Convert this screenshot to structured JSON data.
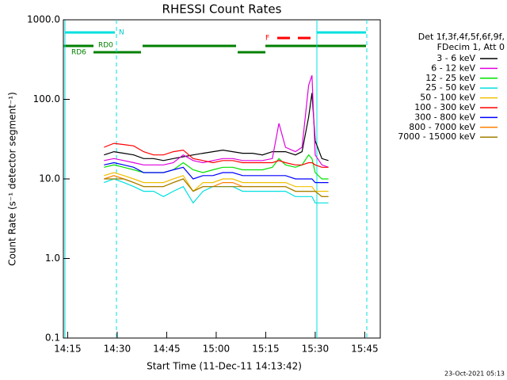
{
  "chart_data": {
    "type": "line",
    "title": "RHESSI Count Rates",
    "x_label": "Start Time (11-Dec-11 14:13:42)",
    "y_label": "Count Rate (s⁻¹ detector segment⁻¹)",
    "legend_header": [
      "Det 1f,3f,4f,5f,6f,9f,",
      "FDecim 1, Att 0"
    ],
    "footer": "23-Oct-2021 05:13",
    "flags": [
      "N",
      "RD0",
      "RD6",
      "F"
    ],
    "log_y": true,
    "xlim": [
      "14:13:42",
      "15:49:42"
    ],
    "xticks": [
      "14:15",
      "14:30",
      "14:45",
      "15:00",
      "15:15",
      "15:30",
      "15:45"
    ],
    "ylim": [
      0.1,
      1000
    ],
    "yticks": [
      {
        "value": 0.1,
        "label": "0.1"
      },
      {
        "value": 1,
        "label": "1.0"
      },
      {
        "value": 10,
        "label": "10.0"
      },
      {
        "value": 100,
        "label": "100.0"
      },
      {
        "value": 1000,
        "label": "1000.0"
      }
    ],
    "x": [
      "14:26",
      "14:29",
      "14:32",
      "14:35",
      "14:38",
      "14:41",
      "14:44",
      "14:47",
      "14:50",
      "14:53",
      "14:56",
      "14:59",
      "15:02",
      "15:05",
      "15:08",
      "15:11",
      "15:14",
      "15:17",
      "15:19",
      "15:21",
      "15:24",
      "15:26",
      "15:28",
      "15:29",
      "15:30",
      "15:32",
      "15:34"
    ],
    "series": [
      {
        "name": "3 - 6 keV",
        "color": "#000000",
        "values": [
          20,
          22,
          21,
          20,
          18,
          18,
          17,
          18,
          19,
          20,
          21,
          22,
          23,
          22,
          21,
          21,
          20,
          22,
          22,
          22,
          20,
          22,
          60,
          120,
          30,
          18,
          17
        ]
      },
      {
        "name": "6 - 12 keV",
        "color": "#e000e0",
        "values": [
          17,
          18,
          17,
          16,
          15,
          15,
          15,
          16,
          20,
          17,
          16,
          17,
          18,
          18,
          17,
          17,
          17,
          18,
          50,
          25,
          22,
          25,
          150,
          200,
          20,
          15,
          14
        ]
      },
      {
        "name": "12 - 25 keV",
        "color": "#00e000",
        "values": [
          14,
          15,
          14,
          13,
          12,
          12,
          12,
          13,
          16,
          13,
          12,
          13,
          14,
          14,
          13,
          13,
          13,
          14,
          18,
          15,
          14,
          15,
          20,
          18,
          12,
          10,
          10
        ]
      },
      {
        "name": "25 - 50 keV",
        "color": "#00e0e0",
        "values": [
          9,
          10,
          9,
          8,
          7,
          7,
          6,
          7,
          8,
          5,
          7,
          8,
          8,
          8,
          7,
          7,
          7,
          7,
          7,
          7,
          6,
          6,
          6,
          6,
          5,
          5,
          5
        ]
      },
      {
        "name": "50 - 100 keV",
        "color": "#f0c000",
        "values": [
          11,
          12,
          11,
          10,
          9,
          9,
          9,
          10,
          11,
          7,
          9,
          9,
          10,
          10,
          9,
          9,
          9,
          9,
          9,
          9,
          8,
          8,
          8,
          8,
          7,
          7,
          7
        ]
      },
      {
        "name": "100 - 300 keV",
        "color": "#ff0000",
        "values": [
          25,
          28,
          27,
          26,
          22,
          20,
          20,
          22,
          23,
          18,
          17,
          16,
          17,
          17,
          16,
          16,
          16,
          16,
          17,
          16,
          15,
          15,
          16,
          16,
          15,
          14,
          14
        ]
      },
      {
        "name": "300 - 800 keV",
        "color": "#0000ff",
        "values": [
          15,
          16,
          15,
          14,
          12,
          12,
          12,
          13,
          14,
          10,
          11,
          11,
          12,
          12,
          11,
          11,
          11,
          11,
          11,
          11,
          10,
          10,
          10,
          10,
          9,
          9,
          9
        ]
      },
      {
        "name": "800 - 7000 keV",
        "color": "#ff8000",
        "values": [
          10,
          11,
          10,
          9,
          8,
          8,
          8,
          9,
          10,
          7,
          8,
          8,
          9,
          9,
          8,
          8,
          8,
          8,
          8,
          8,
          7,
          7,
          7,
          7,
          7,
          6,
          6
        ]
      },
      {
        "name": "7000 - 15000 keV",
        "color": "#a08000",
        "values": [
          10,
          10,
          10,
          9,
          8,
          8,
          8,
          9,
          10,
          7,
          8,
          8,
          8,
          8,
          8,
          8,
          8,
          8,
          8,
          8,
          7,
          7,
          7,
          7,
          7,
          6,
          6
        ]
      }
    ]
  }
}
